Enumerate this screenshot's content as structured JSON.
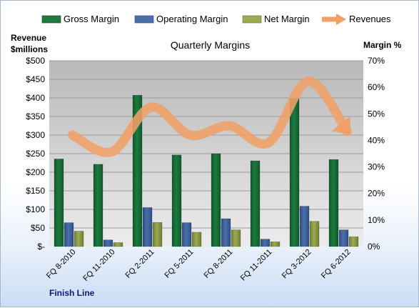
{
  "legend": {
    "gross": "Gross Margin",
    "operating": "Operating Margin",
    "net": "Net Margin",
    "revenues": "Revenues"
  },
  "left_axis_title": [
    "Revenue",
    "$millions"
  ],
  "right_axis_title": "Margin %",
  "footer": "Finish Line",
  "colors": {
    "gross": "#1e7a3e",
    "operating": "#4b6fa8",
    "net": "#9aab52",
    "revenues": "#f0a066",
    "plot_bg": "#c8c8c8",
    "grid": "#9a9a9a"
  },
  "chart_data": {
    "type": "bar",
    "title": "Quarterly Margins",
    "categories": [
      "FQ 8-2010",
      "FQ 11-2010",
      "FQ 2-2011",
      "FQ 5-2011",
      "FQ 8-2011",
      "FQ 11-2011",
      "FQ 3-2012",
      "FQ 6-2012"
    ],
    "left_axis": {
      "ylim": [
        0,
        500
      ],
      "ticks": [
        "$-",
        "$50",
        "$100",
        "$150",
        "$200",
        "$250",
        "$300",
        "$350",
        "$400",
        "$450",
        "$500"
      ]
    },
    "right_axis": {
      "ylim": [
        0,
        70
      ],
      "ticks": [
        "0%",
        "10%",
        "20%",
        "30%",
        "40%",
        "50%",
        "60%",
        "70%"
      ]
    },
    "series": [
      {
        "name": "Gross Margin",
        "axis": "right",
        "values": [
          33,
          31,
          57,
          34.5,
          35,
          32.3,
          55.8,
          32.8
        ]
      },
      {
        "name": "Operating Margin",
        "axis": "right",
        "values": [
          9,
          2.5,
          14.7,
          9,
          10.5,
          2.8,
          15.2,
          6.3
        ]
      },
      {
        "name": "Net Margin",
        "axis": "right",
        "values": [
          5.8,
          1.5,
          9.1,
          5.4,
          6.3,
          1.8,
          9.5,
          3.7
        ]
      },
      {
        "name": "Revenues",
        "axis": "left",
        "type": "line",
        "values": [
          300,
          255,
          375,
          300,
          325,
          280,
          445,
          310
        ]
      }
    ],
    "grid": true,
    "legend_position": "top"
  }
}
